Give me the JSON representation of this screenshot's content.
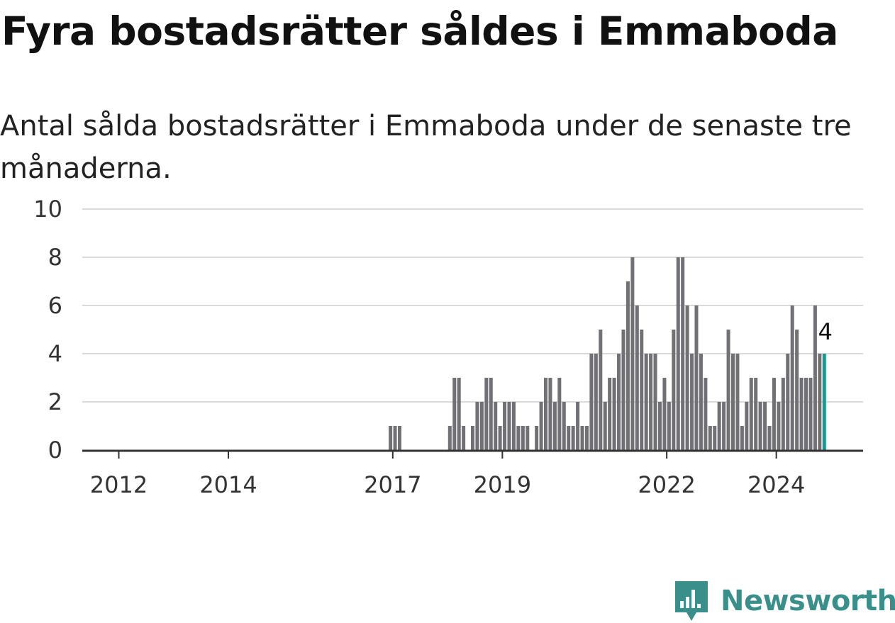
{
  "title": "Fyra bostadsrätter såldes i Emmaboda",
  "subtitle": "Antal sålda bostadsrätter i Emmaboda under de senaste tre månaderna.",
  "brand": {
    "name": "Newsworthy",
    "icon": "newsworthy-logo-icon",
    "color": "#3a8f8a"
  },
  "colors": {
    "bar": "#717075",
    "highlight": "#22958f",
    "grid": "#d9d9d9",
    "axis": "#333333"
  },
  "chart_data": {
    "type": "bar",
    "ylim": [
      0,
      10
    ],
    "y_ticks": [
      0,
      2,
      4,
      6,
      8,
      10
    ],
    "x_range": [
      "2011-05",
      "2025-08"
    ],
    "x_ticks": [
      {
        "label": "2012",
        "date": "2012-01"
      },
      {
        "label": "2014",
        "date": "2014-01"
      },
      {
        "label": "2017",
        "date": "2017-01"
      },
      {
        "label": "2019",
        "date": "2019-01"
      },
      {
        "label": "2022",
        "date": "2022-01"
      },
      {
        "label": "2024",
        "date": "2024-01"
      }
    ],
    "grid": true,
    "callout": {
      "date": "2024-10",
      "label": "4"
    },
    "data": [
      [
        "2016-12",
        1
      ],
      [
        "2017-01",
        1
      ],
      [
        "2017-02",
        1
      ],
      [
        "2018-01",
        1
      ],
      [
        "2018-02",
        3
      ],
      [
        "2018-03",
        3
      ],
      [
        "2018-04",
        1
      ],
      [
        "2018-06",
        1
      ],
      [
        "2018-07",
        2
      ],
      [
        "2018-08",
        2
      ],
      [
        "2018-09",
        3
      ],
      [
        "2018-10",
        3
      ],
      [
        "2018-11",
        2
      ],
      [
        "2018-12",
        1
      ],
      [
        "2019-01",
        2
      ],
      [
        "2019-02",
        2
      ],
      [
        "2019-03",
        2
      ],
      [
        "2019-04",
        1
      ],
      [
        "2019-05",
        1
      ],
      [
        "2019-06",
        1
      ],
      [
        "2019-08",
        1
      ],
      [
        "2019-09",
        2
      ],
      [
        "2019-10",
        3
      ],
      [
        "2019-11",
        3
      ],
      [
        "2019-12",
        2
      ],
      [
        "2020-01",
        3
      ],
      [
        "2020-02",
        2
      ],
      [
        "2020-03",
        1
      ],
      [
        "2020-04",
        1
      ],
      [
        "2020-05",
        2
      ],
      [
        "2020-06",
        1
      ],
      [
        "2020-07",
        1
      ],
      [
        "2020-08",
        4
      ],
      [
        "2020-09",
        4
      ],
      [
        "2020-10",
        5
      ],
      [
        "2020-11",
        2
      ],
      [
        "2020-12",
        3
      ],
      [
        "2021-01",
        3
      ],
      [
        "2021-02",
        4
      ],
      [
        "2021-03",
        5
      ],
      [
        "2021-04",
        7
      ],
      [
        "2021-05",
        8
      ],
      [
        "2021-06",
        6
      ],
      [
        "2021-07",
        5
      ],
      [
        "2021-08",
        4
      ],
      [
        "2021-09",
        4
      ],
      [
        "2021-10",
        4
      ],
      [
        "2021-11",
        2
      ],
      [
        "2021-12",
        3
      ],
      [
        "2022-01",
        2
      ],
      [
        "2022-02",
        5
      ],
      [
        "2022-03",
        8
      ],
      [
        "2022-04",
        8
      ],
      [
        "2022-05",
        6
      ],
      [
        "2022-06",
        4
      ],
      [
        "2022-07",
        6
      ],
      [
        "2022-08",
        4
      ],
      [
        "2022-09",
        3
      ],
      [
        "2022-10",
        1
      ],
      [
        "2022-11",
        1
      ],
      [
        "2022-12",
        2
      ],
      [
        "2023-01",
        2
      ],
      [
        "2023-02",
        5
      ],
      [
        "2023-03",
        4
      ],
      [
        "2023-04",
        4
      ],
      [
        "2023-05",
        1
      ],
      [
        "2023-06",
        2
      ],
      [
        "2023-07",
        3
      ],
      [
        "2023-08",
        3
      ],
      [
        "2023-09",
        2
      ],
      [
        "2023-10",
        2
      ],
      [
        "2023-11",
        1
      ],
      [
        "2023-12",
        3
      ],
      [
        "2024-01",
        2
      ],
      [
        "2024-02",
        3
      ],
      [
        "2024-03",
        4
      ],
      [
        "2024-04",
        6
      ],
      [
        "2024-05",
        5
      ],
      [
        "2024-06",
        3
      ],
      [
        "2024-07",
        3
      ],
      [
        "2024-08",
        3
      ],
      [
        "2024-09",
        6
      ],
      [
        "2024-10",
        4
      ],
      [
        "2024-11",
        4
      ]
    ],
    "highlight_date": "2024-11"
  }
}
